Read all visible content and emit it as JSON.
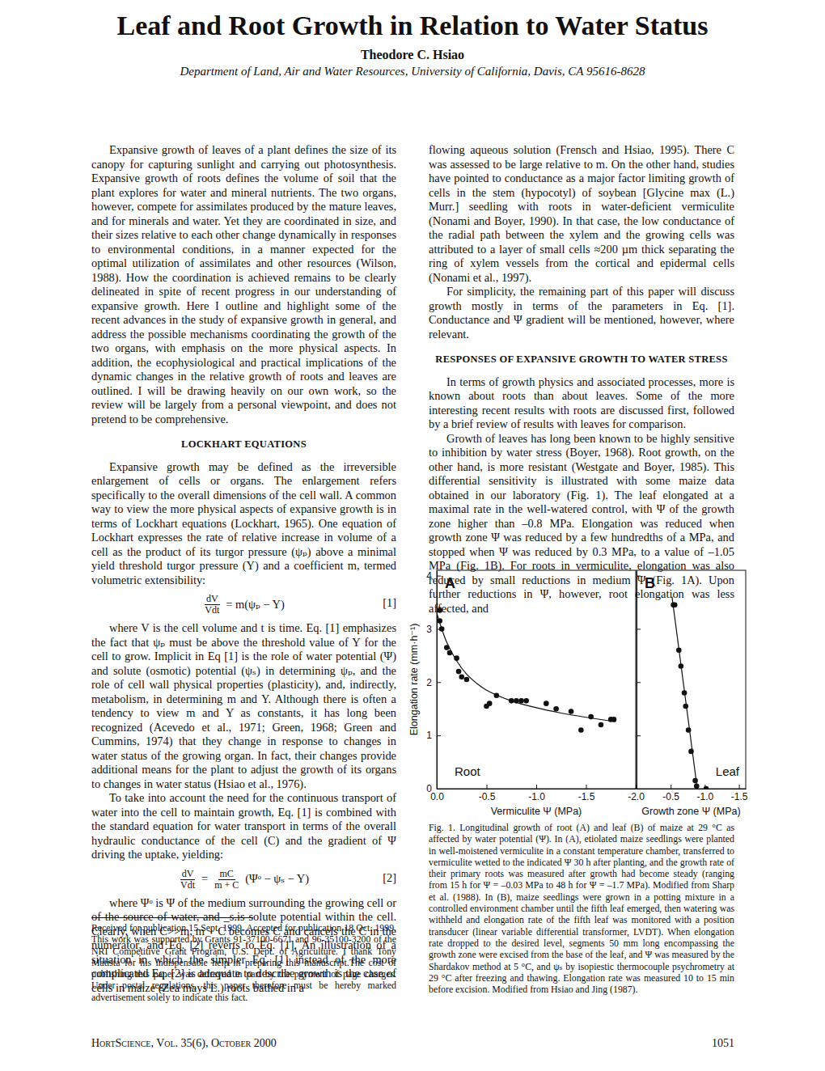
{
  "header": {
    "title": "Leaf and Root Growth in Relation to Water Status",
    "author": "Theodore C. Hsiao",
    "affiliation": "Department of Land, Air and Water Resources, University of California, Davis, CA 95616-8628"
  },
  "left_column": [
    {
      "type": "paragraph",
      "text": "Expansive growth of leaves of a plant defines the size of its canopy for capturing sunlight and carrying out photosynthesis. Expansive growth of roots defines the volume of soil that the plant explores for water and mineral nutrients. The two organs, however, compete for assimilates produced by the mature leaves, and for minerals and water. Yet they are coordinated in size, and their sizes relative to each other change dynamically in responses to environmental conditions, in a manner expected for the optimal utilization of assimilates and other resources (Wilson, 1988). How the coordination is achieved remains to be clearly delineated in spite of recent progress in our understanding of expansive growth. Here I outline and highlight some of the recent advances in the study of expansive growth in general, and address the possible mechanisms coordinating the growth of the two organs, with emphasis on the more physical aspects. In addition, the ecophysiological and practical implications of the dynamic changes in the relative growth of roots and leaves are outlined. I will be drawing heavily on our own work, so the review will be largely from a personal viewpoint, and does not pretend to be comprehensive."
    },
    {
      "type": "heading",
      "text": "LOCKHART EQUATIONS"
    },
    {
      "type": "paragraph",
      "text": "Expansive growth may be defined as the irreversible enlargement of cells or organs. The enlargement refers specifically to the overall dimensions of the cell wall. A common way to view the more physical aspects of expansive growth is in terms of Lockhart equations (Lockhart, 1965). One equation of Lockhart expresses the rate of relative increase in volume of a cell as the product of its turgor pressure (ψₚ) above a minimal yield threshold turgor pressure (Y) and a coefficient m, termed volumetric extensibility:"
    },
    {
      "type": "equation",
      "terms": [
        {
          "num": "dV",
          "den": "Vdt"
        },
        "= m(ψₚ − Y)"
      ],
      "number": "[1]"
    },
    {
      "type": "paragraph",
      "text": "where V is the cell volume and t is time. Eq. [1] emphasizes the fact that ψₚ must be above the threshold value of Y for the cell to grow. Implicit in Eq [1] is the role of water potential (Ψ) and solute (osmotic) potential (ψₛ) in determining ψₚ, and the role of cell wall physical properties (plasticity), and, indirectly, metabolism, in determining m and Y. Although there is often a tendency to view m and Y as constants, it has long been recognized (Acevedo et al., 1971; Green, 1968; Green and Cummins, 1974) that they change in response to changes in water status of the growing organ. In fact, their changes provide additional means for the plant to adjust the growth of its organs to changes in water status (Hsiao et al., 1976)."
    },
    {
      "type": "paragraph",
      "text": "To take into account the need for the continuous transport of water into the cell to maintain growth, Eq. [1] is combined with the standard equation for water transport in terms of the overall hydraulic conductance of the cell (C) and the gradient of Ψ driving the uptake, yielding:"
    },
    {
      "type": "equation",
      "terms": [
        {
          "num": "dV",
          "den": "Vdt"
        },
        "=",
        {
          "num": "mC",
          "den": "m + C"
        },
        "(Ψᵒ − ψₛ − Y)"
      ],
      "number": "[2]"
    },
    {
      "type": "paragraph",
      "text": "where Ψᵒ is Ψ of the medium surrounding the growing cell or of the source of water, and _s.is solute potential within the cell. Clearly, when C>>m, m + C becomes C and cancels the C in the numerator, and Eq. [2] reverts to Eq. [1]. An illustration of a situation in which the simpler Eq. [1] instead of the more complicated Eq. [2] is adequate to describe growth is the case of cells in maize (Zea mays L.) roots bathed in a"
    }
  ],
  "right_column": [
    {
      "type": "paragraph",
      "text": "flowing aqueous solution (Frensch and Hsiao, 1995). There C was assessed to be large relative to m. On the other hand, studies have pointed to conductance as a major factor limiting growth of cells in the stem (hypocotyl) of soybean [Glycine max (L.) Murr.] seedling with roots in water-deficient vermiculite (Nonami and Boyer, 1990). In that case, the low conductance of the radial path between the xylem and the growing cells was attributed to a layer of small cells ≈200 µm thick separating the ring of xylem vessels from the cortical and epidermal cells (Nonami et al., 1997)."
    },
    {
      "type": "paragraph",
      "text": "For simplicity, the remaining part of this paper will discuss growth mostly in terms of the parameters in Eq. [1]. Conductance and Ψ gradient will be mentioned, however, where relevant."
    },
    {
      "type": "heading",
      "text": "RESPONSES OF EXPANSIVE GROWTH TO WATER STRESS"
    },
    {
      "type": "paragraph",
      "text": "In terms of growth physics and associated processes, more is known about roots than about leaves. Some of the more interesting recent results with roots are discussed first, followed by a brief review of results with leaves for comparison."
    },
    {
      "type": "paragraph",
      "text": "Growth of leaves has long been known to be highly sensitive to inhibition by water stress (Boyer, 1968). Root growth, on the other hand, is more resistant (Westgate and Boyer, 1985). This differential sensitivity is illustrated with some maize data obtained in our laboratory (Fig. 1). The leaf elongated at a maximal rate in the well-watered control, with Ψ of the growth zone higher than –0.8 MPa. Elongation was reduced when growth zone Ψ was reduced by a few hundredths of a MPa, and stopped when Ψ was reduced by 0.3 MPa, to a value of –1.05 MPa (Fig. 1B). For roots in vermiculite, elongation was also reduced by small reductions in medium Ψ (Fig. 1A). Upon further reductions in Ψ, however, root elongation was less affected, and"
    }
  ],
  "footnote": "Received for publication 15 Sept. 1999. Accepted for publication 18 Oct. 1999. This work was supported by Grants 91-37100-6671 and 96-35100-3200 of the NRI Competitive Grant Program, U.S. Dept. of Agriculture. I thank Tony Matista for his indispensable help in preparing this manuscript.The cost of publishing this paper was defrayed in part by the payment of page charges. Under postal regulations, this paper therefore must be hereby marked advertisement solely to indicate this fact.",
  "figure": {
    "caption": "Fig. 1. Longitudinal growth of root (A) and leaf (B) of maize at 29 °C as affected by water potential (Ψ). In (A), etiolated maize seedlings were planted in well-moistened vermiculite in a constant temperature chamber, transferred to vermiculite wetted to the indicated Ψ 30 h after planting, and the growth rate of their primary roots was measured after growth had become steady (ranging from 15 h for Ψ = –0.03 MPa to 48 h for Ψ = –1.7 MPa). Modified from Sharp et al. (1988). In (B), maize seedlings were grown in a potting mixture in a controlled environment chamber until the fifth leaf emerged, then watering was withheld and elongation rate of the fifth leaf was monitored with a position transducer (linear variable differential transformer, LVDT). When elongation rate dropped to the desired level, segments 50 mm long encompassing the growth zone were excised from the base of the leaf, and Ψ was measured by the Shardakov method at 5 °C, and ψₛ by isopiestic thermocouple psychrometry at 29 °C after freezing and thawing. Elongation rate was measured 10 to 15 min before excision. Modified from Hsiao and Jing (1987)."
  },
  "footer": {
    "journal": "HortScience, Vol. 35(6), October 2000",
    "page": "1051"
  },
  "chart_data": [
    {
      "type": "scatter",
      "label": "A",
      "annotation": "Root",
      "x_label": "Vermiculite Ψ (MPa)",
      "y_label": "Elongation rate (mm·h⁻¹)",
      "xlim": [
        0,
        -2
      ],
      "ylim": [
        0,
        4.1
      ],
      "xticks": [
        {
          "value": 0,
          "label": "0.0"
        },
        {
          "value": -0.5,
          "label": "-0.5"
        },
        {
          "value": -1,
          "label": "-1.0"
        },
        {
          "value": -1.5,
          "label": "-1.5"
        },
        {
          "value": -2,
          "label": "-2.0"
        }
      ],
      "yticks": [
        0,
        1,
        2,
        3,
        4
      ],
      "series": [
        {
          "color": "#111111",
          "marker": "circle",
          "x": [
            -0.03,
            -0.03,
            -0.05,
            -0.1,
            -0.13,
            -0.2,
            -0.22,
            -0.25,
            -0.3,
            -0.5,
            -0.53,
            -0.6,
            -0.75,
            -0.8,
            -0.85,
            -0.9,
            -1.1,
            -1.2,
            -1.35,
            -1.45,
            -1.55,
            -1.65,
            -1.75,
            -1.78
          ],
          "values": [
            3.35,
            3.15,
            3.0,
            2.65,
            2.55,
            2.45,
            2.2,
            2.1,
            2.05,
            1.55,
            1.6,
            1.75,
            1.65,
            1.65,
            1.65,
            1.65,
            1.6,
            1.5,
            1.45,
            1.1,
            1.35,
            1.2,
            1.3,
            1.3
          ]
        },
        {
          "type": "line",
          "color": "#111111",
          "line_style": "solid",
          "x": [
            0,
            -0.05,
            -0.1,
            -0.2,
            -0.3,
            -0.4,
            -0.5,
            -0.75,
            -1.0,
            -1.25,
            -1.5,
            -1.8
          ],
          "values": [
            3.3,
            3.0,
            2.75,
            2.4,
            2.15,
            1.98,
            1.85,
            1.65,
            1.52,
            1.42,
            1.34,
            1.26
          ]
        }
      ]
    },
    {
      "type": "scatter",
      "label": "B",
      "annotation": "Leaf",
      "x_label": "Growth zone Ψ (MPa)",
      "xlim": [
        0,
        -1.6
      ],
      "ylim": [
        0,
        4.1
      ],
      "xticks": [
        {
          "value": -0.5,
          "label": "-0.5"
        },
        {
          "value": -1,
          "label": "-1.0"
        },
        {
          "value": -1.5,
          "label": "-1.5"
        }
      ],
      "yticks": [
        0,
        1,
        2,
        3,
        4
      ],
      "tick_labels": "x",
      "series": [
        {
          "color": "#111111",
          "marker": "circle",
          "x": [
            -0.54,
            -0.56,
            -0.62,
            -0.65,
            -0.7,
            -0.72,
            -0.76,
            -0.8,
            -0.86,
            -0.88,
            -1.02
          ],
          "values": [
            3.45,
            3.45,
            2.6,
            2.3,
            1.8,
            1.55,
            1.1,
            0.7,
            0.15,
            0.05,
            0.0
          ]
        },
        {
          "type": "line",
          "color": "#111111",
          "line_style": "solid",
          "x": [
            -0.52,
            -0.89
          ],
          "values": [
            3.6,
            0.0
          ]
        }
      ]
    }
  ]
}
